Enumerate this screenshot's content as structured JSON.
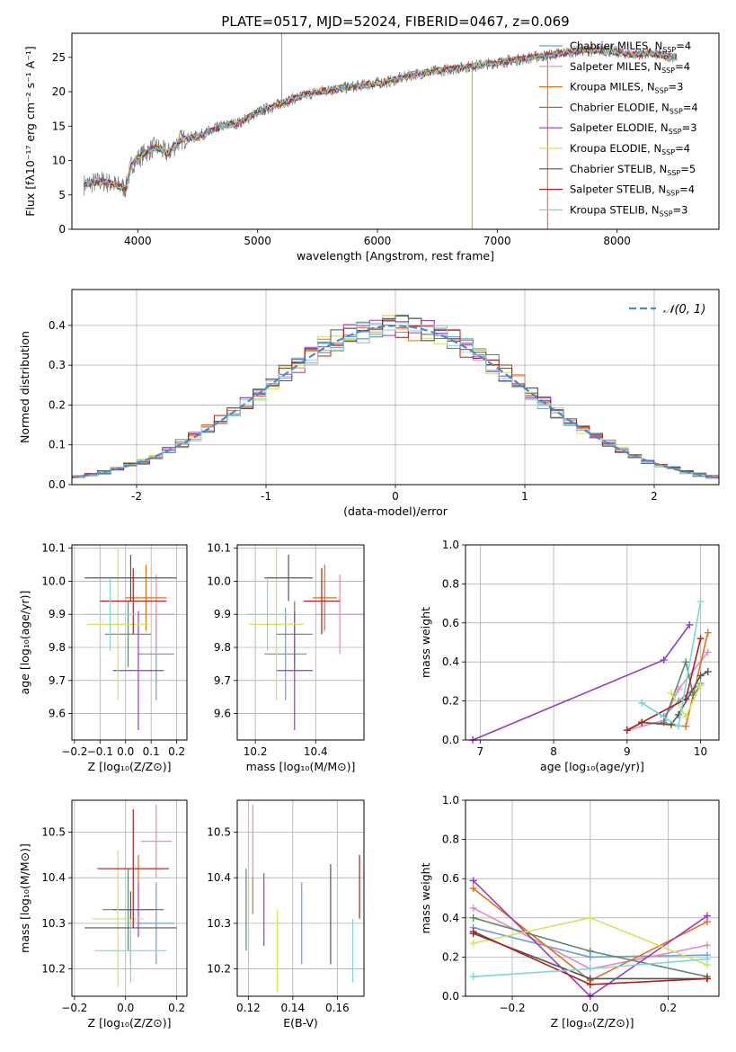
{
  "figure": {
    "title": "PLATE=0517, MJD=52024, FIBERID=0467, z=0.069"
  },
  "models": [
    {
      "name": "Chabrier MILES",
      "nssp": "4",
      "color": "#6a9fd8"
    },
    {
      "name": "Salpeter MILES",
      "nssp": "4",
      "color": "#e58cc0"
    },
    {
      "name": "Kroupa MILES",
      "nssp": "3",
      "color": "#e0721c"
    },
    {
      "name": "Chabrier ELODIE",
      "nssp": "4",
      "color": "#5d8a6a"
    },
    {
      "name": "Salpeter ELODIE",
      "nssp": "3",
      "color": "#9a3cc0"
    },
    {
      "name": "Kroupa ELODIE",
      "nssp": "4",
      "color": "#d4e35a"
    },
    {
      "name": "Chabrier STELIB",
      "nssp": "5",
      "color": "#555555"
    },
    {
      "name": "Salpeter STELIB",
      "nssp": "4",
      "color": "#b02020"
    },
    {
      "name": "Kroupa STELIB",
      "nssp": "3",
      "color": "#7fd8d8"
    }
  ],
  "chart_data": [
    {
      "id": "spectrum",
      "type": "line",
      "xlabel": "wavelength [Angstrom, rest frame]",
      "ylabel": "Flux [fλ10⁻¹⁷ erg cm⁻² s⁻¹ A⁻¹]",
      "xlim": [
        3450,
        8850
      ],
      "ylim": [
        0,
        28.5
      ],
      "xticks": [
        4000,
        5000,
        6000,
        7000,
        8000
      ],
      "yticks": [
        0,
        5,
        10,
        15,
        20,
        25
      ],
      "grid": false,
      "legend": "right",
      "series": [
        {
          "name": "data",
          "x": [
            3550,
            3700,
            3800,
            3900,
            3950,
            4050,
            4150,
            4250,
            4350,
            4500,
            4700,
            4850,
            5000,
            5150,
            5300,
            5500,
            5700,
            5900,
            6100,
            6300,
            6500,
            6700,
            6900,
            7100,
            7300,
            7500,
            7700,
            7900,
            8100,
            8300,
            8500
          ],
          "y": [
            6.5,
            7,
            6.5,
            6,
            9.5,
            11,
            12,
            11,
            13,
            13.5,
            15,
            15.5,
            17,
            18,
            19,
            20,
            20.5,
            21,
            21.5,
            22.5,
            23,
            23.5,
            24,
            24.5,
            25,
            25.5,
            26,
            26,
            25.5,
            25.5,
            25
          ]
        }
      ]
    },
    {
      "id": "residuals",
      "type": "line",
      "xlabel": "(data-model)/error",
      "ylabel": "Normed distribution",
      "xlim": [
        -2.5,
        2.5
      ],
      "ylim": [
        0,
        0.49
      ],
      "xticks": [
        -2,
        -1,
        0,
        1,
        2
      ],
      "yticks": [
        0.0,
        0.1,
        0.2,
        0.3,
        0.4
      ],
      "grid": true,
      "legend": "top-right",
      "legend_label": "𝒩(0, 1)",
      "normal": {
        "mean": 0,
        "sigma": 1
      }
    },
    {
      "id": "age-vs-Z",
      "type": "scatter",
      "xlabel": "Z [log₁₀(Z/Z⊙)]",
      "ylabel": "age  [log₁₀(age/yr)]",
      "xlim": [
        -0.21,
        0.24
      ],
      "ylim": [
        9.52,
        10.11
      ],
      "xticks": [
        -0.2,
        -0.1,
        0.0,
        0.1,
        0.2
      ],
      "xticklabels": [
        "−0.2",
        "−0.1",
        "0.0",
        "0.1",
        "0.2"
      ],
      "yticks": [
        9.6,
        9.7,
        9.8,
        9.9,
        10.0,
        10.1
      ],
      "grid": true,
      "points": [
        {
          "model": 0,
          "x": 0.12,
          "xerr": 0.07,
          "y": 9.78,
          "yerr": 0.14
        },
        {
          "model": 1,
          "x": 0.12,
          "xerr": 0.07,
          "y": 9.9,
          "yerr": 0.12
        },
        {
          "model": 2,
          "x": 0.08,
          "xerr": 0.08,
          "y": 9.95,
          "yerr": 0.1
        },
        {
          "model": 3,
          "x": 0.01,
          "xerr": 0.09,
          "y": 9.84,
          "yerr": 0.1
        },
        {
          "model": 4,
          "x": 0.05,
          "xerr": 0.1,
          "y": 9.73,
          "yerr": 0.18
        },
        {
          "model": 5,
          "x": -0.03,
          "xerr": 0.12,
          "y": 9.87,
          "yerr": 0.23
        },
        {
          "model": 6,
          "x": 0.02,
          "xerr": 0.18,
          "y": 10.01,
          "yerr": 0.07
        },
        {
          "model": 7,
          "x": 0.03,
          "xerr": 0.13,
          "y": 9.94,
          "yerr": 0.1
        },
        {
          "model": 8,
          "x": -0.06,
          "xerr": 0.1,
          "y": 9.9,
          "yerr": 0.11
        }
      ]
    },
    {
      "id": "age-vs-mass",
      "type": "scatter",
      "xlabel": "mass [log₁₀(M/M⊙)]",
      "ylabel": "",
      "xlim": [
        10.14,
        10.56
      ],
      "ylim": [
        9.52,
        10.11
      ],
      "xticks": [
        10.2,
        10.4
      ],
      "yticks": [
        9.6,
        9.7,
        9.8,
        9.9,
        10.0,
        10.1
      ],
      "grid": true,
      "points": [
        {
          "model": 0,
          "x": 10.3,
          "xerr": 0.07,
          "y": 9.78,
          "yerr": 0.14
        },
        {
          "model": 1,
          "x": 10.48,
          "xerr": 0.08,
          "y": 9.9,
          "yerr": 0.12
        },
        {
          "model": 2,
          "x": 10.43,
          "xerr": 0.04,
          "y": 9.95,
          "yerr": 0.1
        },
        {
          "model": 3,
          "x": 10.33,
          "xerr": 0.06,
          "y": 9.84,
          "yerr": 0.1
        },
        {
          "model": 4,
          "x": 10.33,
          "xerr": 0.06,
          "y": 9.73,
          "yerr": 0.18
        },
        {
          "model": 5,
          "x": 10.27,
          "xerr": 0.09,
          "y": 9.87,
          "yerr": 0.23
        },
        {
          "model": 6,
          "x": 10.31,
          "xerr": 0.08,
          "y": 10.01,
          "yerr": 0.07
        },
        {
          "model": 7,
          "x": 10.42,
          "xerr": 0.06,
          "y": 9.94,
          "yerr": 0.1
        },
        {
          "model": 8,
          "x": 10.24,
          "xerr": 0.07,
          "y": 9.9,
          "yerr": 0.11
        }
      ]
    },
    {
      "id": "mass-weight-vs-age",
      "type": "line",
      "xlabel": "age  [log₁₀(age/yr)]",
      "ylabel": "mass weight",
      "xlim": [
        6.8,
        10.25
      ],
      "ylim": [
        0,
        1.0
      ],
      "xticks": [
        7,
        8,
        9,
        10
      ],
      "yticks": [
        0.0,
        0.2,
        0.4,
        0.6,
        0.8,
        1.0
      ],
      "grid": true,
      "series": [
        {
          "model": 0,
          "x": [
            9.2,
            9.5,
            9.7,
            10.0
          ],
          "y": [
            0.19,
            0.12,
            0.2,
            0.29
          ]
        },
        {
          "model": 1,
          "x": [
            9.0,
            9.5,
            9.7,
            10.1
          ],
          "y": [
            0.05,
            0.1,
            0.26,
            0.45
          ]
        },
        {
          "model": 2,
          "x": [
            9.0,
            9.2,
            9.8,
            10.1
          ],
          "y": [
            0.05,
            0.09,
            0.07,
            0.55
          ]
        },
        {
          "model": 3,
          "x": [
            9.5,
            9.8,
            9.9,
            10.0
          ],
          "y": [
            0.09,
            0.4,
            0.23,
            0.28
          ]
        },
        {
          "model": 4,
          "x": [
            6.9,
            9.5,
            9.85
          ],
          "y": [
            0.0,
            0.41,
            0.59
          ]
        },
        {
          "model": 5,
          "x": [
            9.6,
            9.8,
            10.0
          ],
          "y": [
            0.24,
            0.12,
            0.28
          ]
        },
        {
          "model": 6,
          "x": [
            9.2,
            9.6,
            9.7,
            10.0,
            10.1
          ],
          "y": [
            0.09,
            0.08,
            0.13,
            0.33,
            0.35
          ]
        },
        {
          "model": 7,
          "x": [
            9.0,
            9.2,
            9.8,
            10.0
          ],
          "y": [
            0.05,
            0.09,
            0.21,
            0.52
          ]
        },
        {
          "model": 8,
          "x": [
            9.2,
            9.7,
            10.0
          ],
          "y": [
            0.19,
            0.07,
            0.71
          ]
        }
      ]
    },
    {
      "id": "mass-vs-Z",
      "type": "scatter",
      "xlabel": "Z [log₁₀(Z/Z⊙)]",
      "ylabel": "mass [log₁₀(M/M⊙)]",
      "xlim": [
        -0.21,
        0.24
      ],
      "ylim": [
        10.14,
        10.57
      ],
      "xticks": [
        -0.2,
        0.0,
        0.2
      ],
      "xticklabels": [
        "−0.2",
        "0.0",
        "0.2"
      ],
      "yticks": [
        10.2,
        10.3,
        10.4,
        10.5
      ],
      "grid": true,
      "points": [
        {
          "model": 0,
          "x": 0.12,
          "xerr": 0.07,
          "y": 10.3,
          "yerr": 0.09
        },
        {
          "model": 1,
          "x": 0.12,
          "xerr": 0.06,
          "y": 10.48,
          "yerr": 0.08
        },
        {
          "model": 2,
          "x": 0.05,
          "xerr": 0.1,
          "y": 10.42,
          "yerr": 0.03
        },
        {
          "model": 3,
          "x": 0.01,
          "xerr": 0.1,
          "y": 10.33,
          "yerr": 0.09
        },
        {
          "model": 4,
          "x": 0.05,
          "xerr": 0.1,
          "y": 10.33,
          "yerr": 0.06
        },
        {
          "model": 5,
          "x": -0.03,
          "xerr": 0.1,
          "y": 10.31,
          "yerr": 0.15
        },
        {
          "model": 6,
          "x": 0.02,
          "xerr": 0.18,
          "y": 10.29,
          "yerr": 0.08
        },
        {
          "model": 7,
          "x": 0.03,
          "xerr": 0.14,
          "y": 10.42,
          "yerr": 0.13
        },
        {
          "model": 8,
          "x": 0.02,
          "xerr": 0.14,
          "y": 10.24,
          "yerr": 0.07
        }
      ]
    },
    {
      "id": "mass-vs-EBV",
      "type": "scatter",
      "xlabel": "E(B-V)",
      "ylabel": "",
      "xlim": [
        0.115,
        0.172
      ],
      "ylim": [
        10.14,
        10.57
      ],
      "xticks": [
        0.12,
        0.14,
        0.16
      ],
      "yticks": [
        10.2,
        10.3,
        10.4,
        10.5
      ],
      "grid": true,
      "points": [
        {
          "model": 0,
          "x": 0.144,
          "y": 10.3,
          "yerr": 0.09
        },
        {
          "model": 1,
          "x": 0.122,
          "y": 10.48,
          "yerr": 0.08
        },
        {
          "model": 2,
          "x": 0.122,
          "y": 10.36,
          "yerr": 0.04
        },
        {
          "model": 3,
          "x": 0.119,
          "y": 10.33,
          "yerr": 0.09
        },
        {
          "model": 4,
          "x": 0.127,
          "y": 10.33,
          "yerr": 0.08
        },
        {
          "model": 5,
          "x": 0.133,
          "y": 10.24,
          "yerr": 0.09
        },
        {
          "model": 6,
          "x": 0.157,
          "y": 10.32,
          "yerr": 0.11
        },
        {
          "model": 7,
          "x": 0.17,
          "y": 10.38,
          "yerr": 0.07
        },
        {
          "model": 8,
          "x": 0.167,
          "y": 10.24,
          "yerr": 0.07
        }
      ]
    },
    {
      "id": "mass-weight-vs-Z",
      "type": "line",
      "xlabel": "Z [log₁₀(Z/Z⊙)]",
      "ylabel": "mass weight",
      "xlim": [
        -0.32,
        0.33
      ],
      "ylim": [
        0,
        1.0
      ],
      "xticks": [
        -0.2,
        0.0,
        0.2
      ],
      "xticklabels": [
        "−0.2",
        "0.0",
        "0.2"
      ],
      "yticks": [
        0.0,
        0.2,
        0.4,
        0.6,
        0.8,
        1.0
      ],
      "grid": true,
      "series": [
        {
          "model": 0,
          "x": [
            -0.3,
            0.0,
            0.3
          ],
          "y": [
            0.35,
            0.2,
            0.21
          ]
        },
        {
          "model": 1,
          "x": [
            -0.3,
            0.0,
            0.3
          ],
          "y": [
            0.45,
            0.14,
            0.26
          ]
        },
        {
          "model": 2,
          "x": [
            -0.3,
            0.0,
            0.3
          ],
          "y": [
            0.55,
            0.08,
            0.38
          ]
        },
        {
          "model": 3,
          "x": [
            -0.3,
            0.0,
            0.3
          ],
          "y": [
            0.4,
            0.23,
            0.1
          ]
        },
        {
          "model": 4,
          "x": [
            -0.3,
            0.0,
            0.3
          ],
          "y": [
            0.59,
            0.0,
            0.41
          ]
        },
        {
          "model": 5,
          "x": [
            -0.3,
            0.0,
            0.3
          ],
          "y": [
            0.27,
            0.4,
            0.16
          ]
        },
        {
          "model": 6,
          "x": [
            -0.3,
            0.0,
            0.3
          ],
          "y": [
            0.32,
            0.09,
            0.09
          ]
        },
        {
          "model": 7,
          "x": [
            -0.3,
            0.0,
            0.3
          ],
          "y": [
            0.33,
            0.06,
            0.09
          ]
        },
        {
          "model": 8,
          "x": [
            -0.3,
            0.0,
            0.3
          ],
          "y": [
            0.1,
            0.14,
            0.19
          ]
        }
      ]
    }
  ]
}
